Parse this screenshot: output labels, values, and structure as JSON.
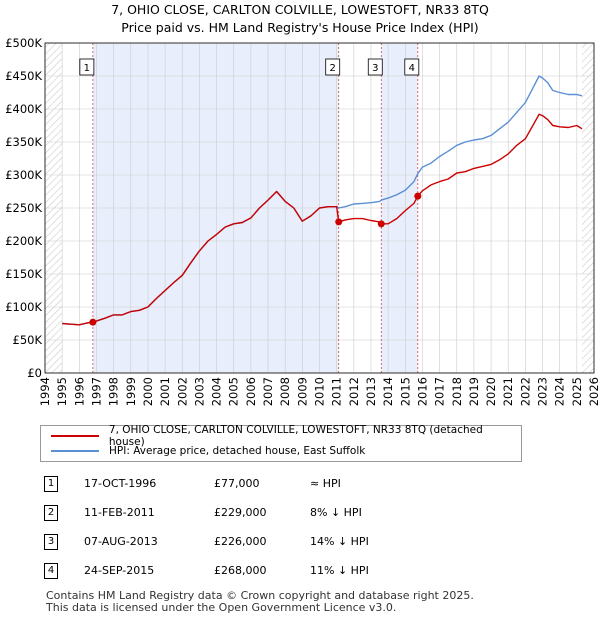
{
  "title_line1": "7, OHIO CLOSE, CARLTON COLVILLE, LOWESTOFT, NR33 8TQ",
  "title_line2": "Price paid vs. HM Land Registry's House Price Index (HPI)",
  "chart_data": {
    "type": "line",
    "xlim": [
      1994,
      2026
    ],
    "ylim": [
      0,
      500000
    ],
    "x_ticks": [
      "1994",
      "1995",
      "1996",
      "1997",
      "1998",
      "1999",
      "2000",
      "2001",
      "2002",
      "2003",
      "2004",
      "2005",
      "2006",
      "2007",
      "2008",
      "2009",
      "2010",
      "2011",
      "2012",
      "2013",
      "2014",
      "2015",
      "2016",
      "2017",
      "2018",
      "2019",
      "2020",
      "2021",
      "2022",
      "2023",
      "2024",
      "2025",
      "2026"
    ],
    "y_ticks": [
      {
        "v": 0,
        "label": "£0"
      },
      {
        "v": 50000,
        "label": "£50K"
      },
      {
        "v": 100000,
        "label": "£100K"
      },
      {
        "v": 150000,
        "label": "£150K"
      },
      {
        "v": 200000,
        "label": "£200K"
      },
      {
        "v": 250000,
        "label": "£250K"
      },
      {
        "v": 300000,
        "label": "£300K"
      },
      {
        "v": 350000,
        "label": "£350K"
      },
      {
        "v": 400000,
        "label": "£400K"
      },
      {
        "v": 450000,
        "label": "£450K"
      },
      {
        "v": 500000,
        "label": "£500K"
      }
    ],
    "series": [
      {
        "name": "7, OHIO CLOSE, CARLTON COLVILLE, LOWESTOFT, NR33 8TQ (detached house)",
        "color": "#cc0000",
        "x": [
          1995.0,
          1995.5,
          1996.0,
          1996.5,
          1996.79,
          1997.5,
          1998.0,
          1998.5,
          1999.0,
          1999.5,
          2000.0,
          2000.5,
          2001.0,
          2001.5,
          2002.0,
          2002.5,
          2003.0,
          2003.5,
          2004.0,
          2004.5,
          2005.0,
          2005.5,
          2006.0,
          2006.5,
          2007.0,
          2007.5,
          2008.0,
          2008.5,
          2009.0,
          2009.5,
          2010.0,
          2010.5,
          2011.0,
          2011.12,
          2011.5,
          2012.0,
          2012.5,
          2013.0,
          2013.5,
          2013.6,
          2014.0,
          2014.5,
          2015.0,
          2015.5,
          2015.73,
          2016.0,
          2016.5,
          2017.0,
          2017.5,
          2018.0,
          2018.5,
          2019.0,
          2019.5,
          2020.0,
          2020.5,
          2021.0,
          2021.5,
          2022.0,
          2022.5,
          2022.8,
          2023.0,
          2023.3,
          2023.6,
          2024.0,
          2024.5,
          2025.0,
          2025.3
        ],
        "y": [
          75000,
          74000,
          73000,
          76000,
          77000,
          83000,
          88000,
          88000,
          93000,
          95000,
          100000,
          113000,
          125000,
          137000,
          148000,
          167000,
          185000,
          200000,
          210000,
          221000,
          226000,
          228000,
          235000,
          250000,
          262000,
          275000,
          260000,
          250000,
          230000,
          238000,
          250000,
          252000,
          252000,
          229000,
          232000,
          234000,
          234000,
          231000,
          229000,
          226000,
          226000,
          234000,
          246000,
          257000,
          268000,
          276000,
          285000,
          290000,
          294000,
          303000,
          305000,
          310000,
          313000,
          316000,
          323000,
          332000,
          345000,
          355000,
          378000,
          392000,
          390000,
          384000,
          375000,
          373000,
          372000,
          375000,
          370000
        ]
      },
      {
        "name": "HPI: Average price, detached house, East Suffolk",
        "color": "#5b8fd4",
        "x": [
          1995.0,
          1995.5,
          1996.0,
          1996.5,
          1996.79,
          1997.5,
          1998.0,
          1998.5,
          1999.0,
          1999.5,
          2000.0,
          2000.5,
          2001.0,
          2001.5,
          2002.0,
          2002.5,
          2003.0,
          2003.5,
          2004.0,
          2004.5,
          2005.0,
          2005.5,
          2006.0,
          2006.5,
          2007.0,
          2007.5,
          2008.0,
          2008.5,
          2009.0,
          2009.5,
          2010.0,
          2010.5,
          2011.0,
          2011.12,
          2011.5,
          2012.0,
          2012.5,
          2013.0,
          2013.5,
          2013.6,
          2014.0,
          2014.5,
          2015.0,
          2015.5,
          2015.73,
          2016.0,
          2016.5,
          2017.0,
          2017.5,
          2018.0,
          2018.5,
          2019.0,
          2019.5,
          2020.0,
          2020.5,
          2021.0,
          2021.5,
          2022.0,
          2022.5,
          2022.8,
          2023.0,
          2023.3,
          2023.6,
          2024.0,
          2024.5,
          2025.0,
          2025.3
        ],
        "y": [
          75000,
          74000,
          73000,
          76000,
          77000,
          83000,
          88000,
          88000,
          93000,
          95000,
          100000,
          113000,
          125000,
          137000,
          148000,
          167000,
          185000,
          200000,
          210000,
          221000,
          226000,
          228000,
          235000,
          250000,
          262000,
          275000,
          260000,
          250000,
          230000,
          238000,
          250000,
          252000,
          252000,
          250000,
          252000,
          256000,
          257000,
          258000,
          260000,
          262000,
          265000,
          270000,
          277000,
          290000,
          302000,
          312000,
          318000,
          328000,
          336000,
          345000,
          350000,
          353000,
          355000,
          360000,
          370000,
          380000,
          395000,
          410000,
          435000,
          450000,
          447000,
          440000,
          428000,
          425000,
          422000,
          422000,
          420000
        ]
      }
    ],
    "sales": [
      {
        "label": "1",
        "date": "17-OCT-1996",
        "price": "£77,000",
        "hpi": "≈ HPI",
        "x": 1996.79,
        "y": 77000
      },
      {
        "label": "2",
        "date": "11-FEB-2011",
        "price": "£229,000",
        "hpi": "8% ↓ HPI",
        "x": 2011.12,
        "y": 229000
      },
      {
        "label": "3",
        "date": "07-AUG-2013",
        "price": "£226,000",
        "hpi": "14% ↓ HPI",
        "x": 2013.6,
        "y": 226000
      },
      {
        "label": "4",
        "date": "24-SEP-2015",
        "price": "£268,000",
        "hpi": "11% ↓ HPI",
        "x": 2015.73,
        "y": 268000
      }
    ],
    "colors": {
      "sale_band": "#e8eefb",
      "hatch": "#cccccc",
      "grid": "#cccccc",
      "marker_line": "#dd4444"
    }
  },
  "legend": {
    "property_label": "7, OHIO CLOSE, CARLTON COLVILLE, LOWESTOFT, NR33 8TQ (detached house)",
    "hpi_label": "HPI: Average price, detached house, East Suffolk"
  },
  "footer": {
    "line1": "Contains HM Land Registry data © Crown copyright and database right 2025.",
    "line2": "This data is licensed under the Open Government Licence v3.0."
  }
}
